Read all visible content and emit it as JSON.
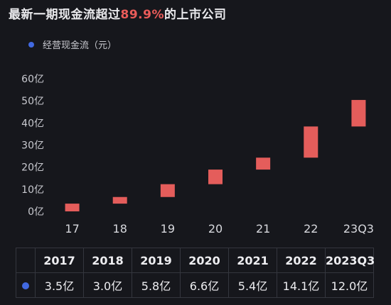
{
  "title": {
    "prefix": "最新一期现金流超过",
    "highlight": "89.9%",
    "suffix": "的上市公司"
  },
  "colors": {
    "background": "#16171c",
    "bar": "#e45d5b",
    "highlight": "#ea5b59",
    "legend_dot": "#4169e1"
  },
  "chart_data": {
    "type": "bar",
    "subtype": "floating (waterfall-style)",
    "legend": [
      "经营现金流（元）"
    ],
    "categories": [
      "17",
      "18",
      "19",
      "20",
      "21",
      "22",
      "23Q3"
    ],
    "series": [
      {
        "name": "经营现金流（元）",
        "values": [
          3.5,
          3.0,
          5.8,
          6.6,
          5.4,
          14.1,
          12.0
        ],
        "range_low": [
          0.0,
          3.5,
          6.5,
          12.3,
          18.9,
          24.3,
          38.4
        ],
        "range_high": [
          3.5,
          6.5,
          12.3,
          18.9,
          24.3,
          38.4,
          50.4
        ]
      }
    ],
    "yticks": [
      "0亿",
      "10亿",
      "20亿",
      "30亿",
      "40亿",
      "50亿",
      "60亿"
    ],
    "ylim": [
      0,
      60
    ],
    "grid": false
  },
  "table": {
    "headers": [
      "2017",
      "2018",
      "2019",
      "2020",
      "2021",
      "2022",
      "2023Q3"
    ],
    "values": [
      "3.5亿",
      "3.0亿",
      "5.8亿",
      "6.6亿",
      "5.4亿",
      "14.1亿",
      "12.0亿"
    ]
  }
}
